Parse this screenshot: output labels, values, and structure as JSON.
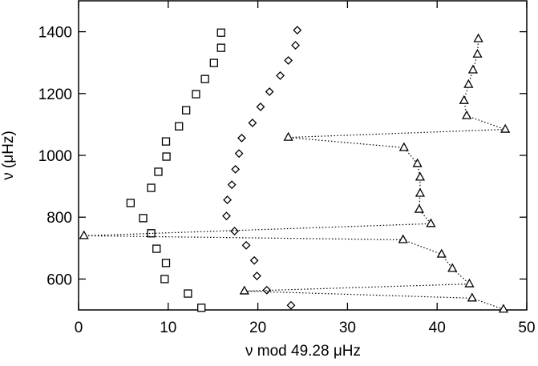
{
  "chart_data": {
    "type": "scatter",
    "xlabel": "ν mod 49.28 μHz",
    "ylabel": "ν (μHz)",
    "xlim": [
      0,
      50
    ],
    "ylim": [
      500,
      1500
    ],
    "xticks": [
      0,
      10,
      20,
      30,
      40,
      50
    ],
    "yticks": [
      600,
      800,
      1000,
      1200,
      1400
    ],
    "series": [
      {
        "marker": "square",
        "color": "#000000",
        "x": [
          13.7,
          12.2,
          9.6,
          9.75,
          8.7,
          8.1,
          7.2,
          5.8,
          8.1,
          8.9,
          9.8,
          9.75,
          11.2,
          12.0,
          13.1,
          14.1,
          15.1,
          15.9,
          15.9
        ],
        "values": [
          507,
          553,
          600,
          652,
          698,
          748,
          797,
          846,
          895,
          947,
          996,
          1045,
          1094,
          1146,
          1198,
          1247,
          1299,
          1348,
          1397
        ]
      },
      {
        "marker": "diamond",
        "color": "#000000",
        "x": [
          23.7,
          21.0,
          19.9,
          19.6,
          18.7,
          17.4,
          16.5,
          16.6,
          17.1,
          17.5,
          17.9,
          18.2,
          19.4,
          20.3,
          21.3,
          22.5,
          23.4,
          24.2,
          24.4
        ],
        "values": [
          515,
          564,
          610,
          660,
          709,
          755,
          804,
          856,
          905,
          955,
          1006,
          1056,
          1105,
          1157,
          1206,
          1258,
          1307,
          1356,
          1405
        ]
      },
      {
        "marker": "triangle",
        "color": "#000000",
        "line": "dotted",
        "x": [
          47.4,
          43.9,
          18.5,
          43.6,
          41.7,
          40.5,
          36.2,
          0.6,
          39.3,
          38.0,
          38.1,
          38.1,
          37.8,
          36.3,
          23.4,
          47.6,
          43.3,
          43.0,
          43.5,
          44.0,
          44.5,
          44.6
        ],
        "values": [
          502,
          538,
          561,
          584,
          634,
          680,
          727,
          740,
          779,
          825,
          877,
          929,
          973,
          1025,
          1058,
          1084,
          1128,
          1177,
          1229,
          1276,
          1327,
          1377
        ]
      }
    ]
  }
}
